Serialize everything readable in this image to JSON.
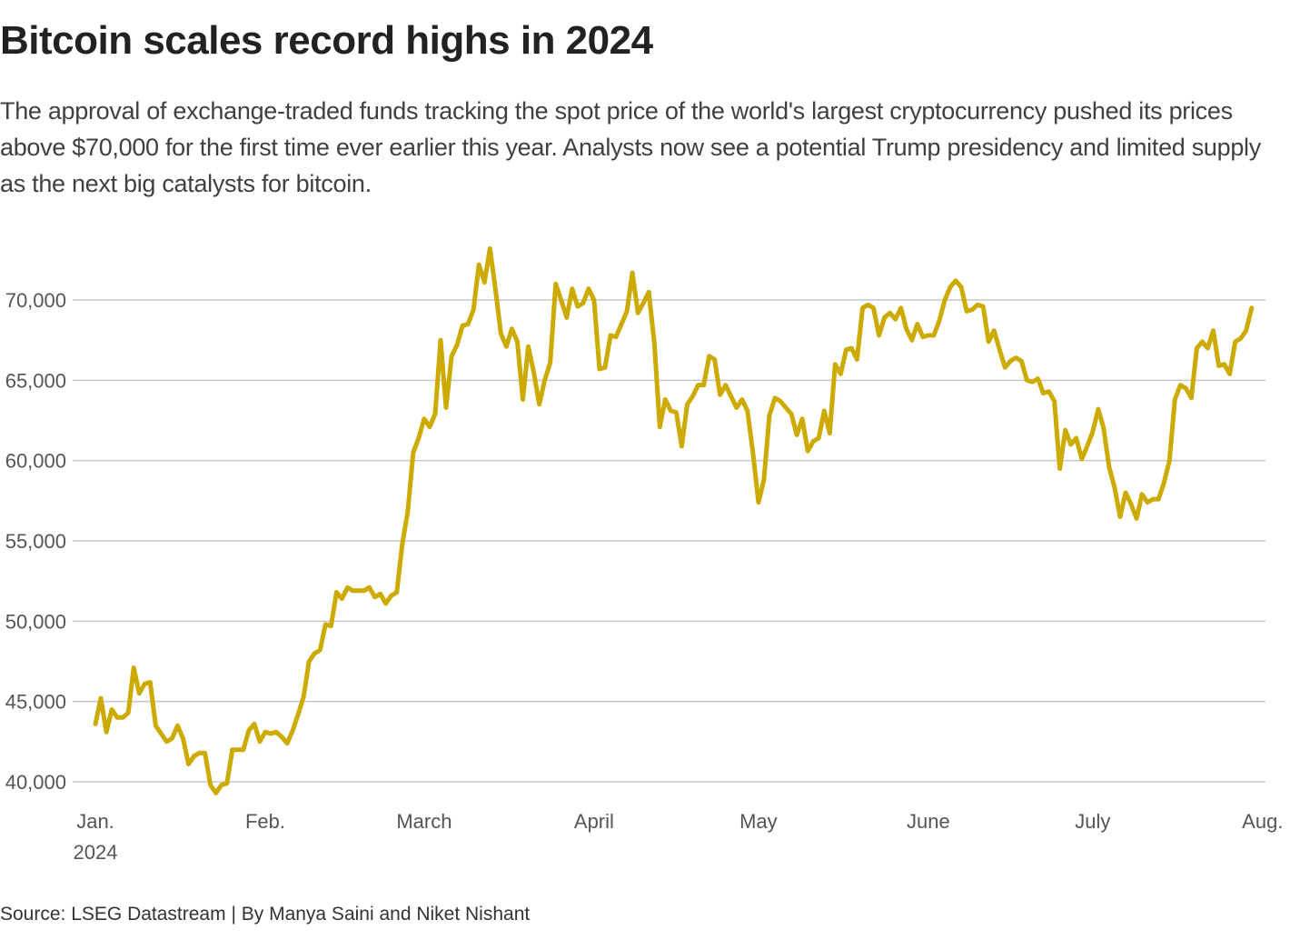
{
  "title": "Bitcoin scales record highs in 2024",
  "subtitle": "The approval of exchange-traded funds tracking the spot price of the world's largest cryptocurrency pushed its prices above $70,000 for the first time ever earlier this year. Analysts now see a potential Trump presidency and limited supply as the next big catalysts for bitcoin.",
  "source": "Source: LSEG Datastream | By Manya Saini and Niket Nishant",
  "chart_data": {
    "type": "line",
    "title": "Bitcoin scales record highs in 2024",
    "xlabel": "",
    "ylabel": "",
    "ylim": [
      39000,
      73500
    ],
    "grid": true,
    "line_color": "#ccaa00",
    "y_ticks": [
      40000,
      45000,
      50000,
      55000,
      60000,
      65000,
      70000
    ],
    "y_tick_labels": [
      "40,000",
      "45,000",
      "50,000",
      "55,000",
      "60,000",
      "65,000",
      "70,000"
    ],
    "x_ticks": [
      "2024-01-01",
      "2024-02-01",
      "2024-03-01",
      "2024-04-01",
      "2024-05-01",
      "2024-06-01",
      "2024-07-01",
      "2024-08-01"
    ],
    "x_tick_labels": [
      "Jan.",
      "Feb.",
      "March",
      "April",
      "May",
      "June",
      "July",
      "Aug."
    ],
    "x_tick_sublabel": "2024",
    "series": [
      {
        "values_by_month": {
          "2024-01": [
            43600,
            45200,
            43100,
            44500,
            44000,
            44000,
            44300,
            47100,
            45500,
            46100,
            46200,
            43500,
            43000,
            42500,
            42700,
            43500,
            42700,
            41100,
            41600,
            41800,
            41800,
            39800,
            39300,
            39800,
            39900,
            42000,
            42000,
            42000,
            43200,
            43600,
            42500
          ],
          "2024-02": [
            43100,
            43000,
            43100,
            42800,
            42400,
            43200,
            44200,
            45300,
            47500,
            48000,
            48200,
            49800,
            49700,
            51800,
            51400,
            52100,
            51900,
            51900,
            51900,
            52100,
            51500,
            51700,
            51100,
            51600,
            51800,
            54800,
            56800,
            60500,
            61400
          ],
          "2024-03": [
            62600,
            62100,
            62900,
            67500,
            63300,
            66500,
            67200,
            68400,
            68500,
            69400,
            72200,
            71100,
            73200,
            70700,
            67900,
            67100,
            68200,
            67400,
            63800,
            67100,
            65500,
            63500,
            65000,
            66100,
            71000,
            70000,
            68900,
            70700,
            69600,
            69800,
            70700
          ],
          "2024-04": [
            70000,
            65700,
            65800,
            67800,
            67700,
            68500,
            69300,
            71700,
            69200,
            69800,
            70500,
            67300,
            62100,
            63800,
            63100,
            63000,
            60900,
            63500,
            64000,
            64700,
            64700,
            66500,
            66300,
            64100,
            64700,
            64000,
            63300,
            63800,
            63100,
            60500
          ],
          "2024-05": [
            57400,
            58800,
            62800,
            63900,
            63700,
            63300,
            62900,
            61600,
            62600,
            60600,
            61200,
            61400,
            63100,
            61700,
            66000,
            65400,
            66900,
            67000,
            66300,
            69500,
            69700,
            69500,
            67800,
            68900,
            69200,
            68800,
            69500,
            68200,
            67500,
            68500,
            67700
          ],
          "2024-06": [
            67800,
            67800,
            68700,
            70000,
            70800,
            71200,
            70800,
            69300,
            69400,
            69700,
            69600,
            67400,
            68100,
            66900,
            65800,
            66200,
            66400,
            66200,
            65000,
            64900,
            65100,
            64200,
            64300,
            63700,
            59500,
            61900,
            61000,
            61400,
            60100,
            60900
          ],
          "2024-07": [
            61800,
            63200,
            62000,
            59600,
            58300,
            56500,
            58000,
            57300,
            56400,
            57900,
            57400,
            57600,
            57600,
            58600,
            60000,
            63800,
            64700,
            64500,
            63900,
            67000,
            67400,
            67000,
            68100,
            65900,
            66000,
            65400,
            67400,
            67600,
            68100,
            69500
          ]
        }
      }
    ]
  }
}
